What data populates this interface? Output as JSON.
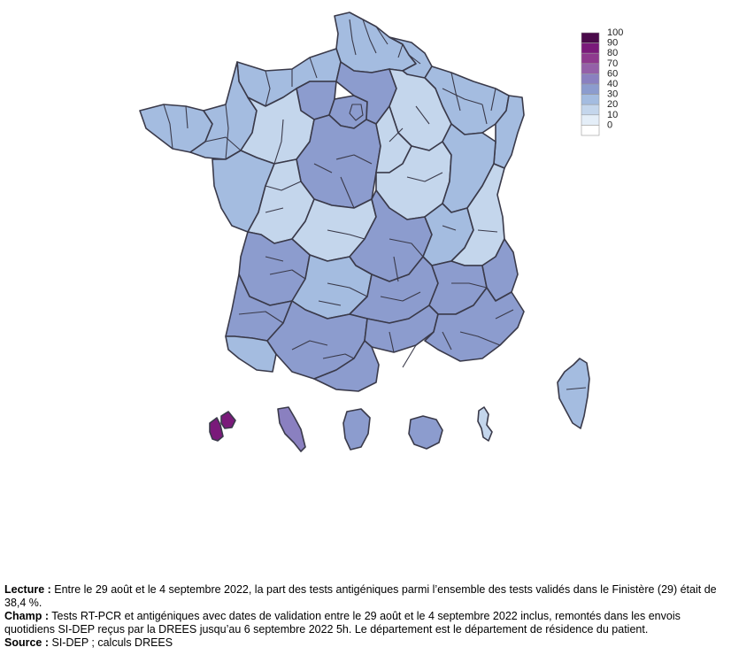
{
  "legend": {
    "labels": [
      "100",
      "90",
      "80",
      "70",
      "60",
      "40",
      "30",
      "20",
      "10",
      "0"
    ],
    "colors": [
      "#4a0a4a",
      "#7a1a7a",
      "#8e3a8e",
      "#9460a8",
      "#8a80c0",
      "#8c9cce",
      "#a4bce0",
      "#c4d6ec",
      "#e4eef8",
      "#ffffff"
    ]
  },
  "map": {
    "metro_regions": [
      {
        "name": "north-coast",
        "class": "30"
      },
      {
        "name": "nord",
        "class": "30"
      },
      {
        "name": "ardennes-lorraine",
        "class": "30"
      },
      {
        "name": "normandie",
        "class": "30"
      },
      {
        "name": "ile-de-france-west",
        "class": "40"
      },
      {
        "name": "paris",
        "class": "40"
      },
      {
        "name": "ile-de-france-east",
        "class": "40"
      },
      {
        "name": "champagne",
        "class": "20"
      },
      {
        "name": "alsace",
        "class": "30"
      },
      {
        "name": "bretagne-west",
        "class": "30"
      },
      {
        "name": "bretagne-east",
        "class": "30"
      },
      {
        "name": "pays-de-loire-north",
        "class": "20"
      },
      {
        "name": "centre",
        "class": "40"
      },
      {
        "name": "loiret-yonne",
        "class": "20"
      },
      {
        "name": "bourgogne",
        "class": "20"
      },
      {
        "name": "franche-comte",
        "class": "30"
      },
      {
        "name": "vendee",
        "class": "30"
      },
      {
        "name": "poitou",
        "class": "20"
      },
      {
        "name": "limousin",
        "class": "20"
      },
      {
        "name": "auvergne",
        "class": "40"
      },
      {
        "name": "rhone",
        "class": "30"
      },
      {
        "name": "savoie",
        "class": "20"
      },
      {
        "name": "gironde",
        "class": "40"
      },
      {
        "name": "dordogne-lot",
        "class": "30"
      },
      {
        "name": "aveyron-lozere",
        "class": "40"
      },
      {
        "name": "drome-isere",
        "class": "40"
      },
      {
        "name": "hautes-alpes",
        "class": "40"
      },
      {
        "name": "landes",
        "class": "40"
      },
      {
        "name": "pyrenees-atlantiques",
        "class": "30"
      },
      {
        "name": "occitanie-west",
        "class": "40"
      },
      {
        "name": "herault-gard",
        "class": "40"
      },
      {
        "name": "provence",
        "class": "40"
      },
      {
        "name": "pyrenees-orientales",
        "class": "40"
      }
    ],
    "corsica": {
      "name": "corse",
      "class": "30"
    },
    "overseas": [
      {
        "name": "guadeloupe",
        "class": "90"
      },
      {
        "name": "martinique",
        "class": "60"
      },
      {
        "name": "guyane",
        "class": "40"
      },
      {
        "name": "la-reunion",
        "class": "40"
      },
      {
        "name": "mayotte",
        "class": "20"
      }
    ]
  },
  "notes": {
    "lecture_label": "Lecture :",
    "lecture_text": " Entre le 29 août et le 4 septembre 2022, la part des tests antigéniques parmi l’ensemble des tests validés dans le Finistère (29) était de 38,4 %.",
    "champ_label": "Champ :",
    "champ_text": " Tests RT-PCR et antigéniques avec dates de validation entre le 29 août et le 4 septembre 2022 inclus, remontés dans les envois quotidiens SI-DEP reçus par la DREES jusqu’au 6 septembre 2022 5h. Le département est le département de résidence du patient.",
    "source_label": "Source :",
    "source_text": " SI-DEP ; calculs DREES"
  }
}
